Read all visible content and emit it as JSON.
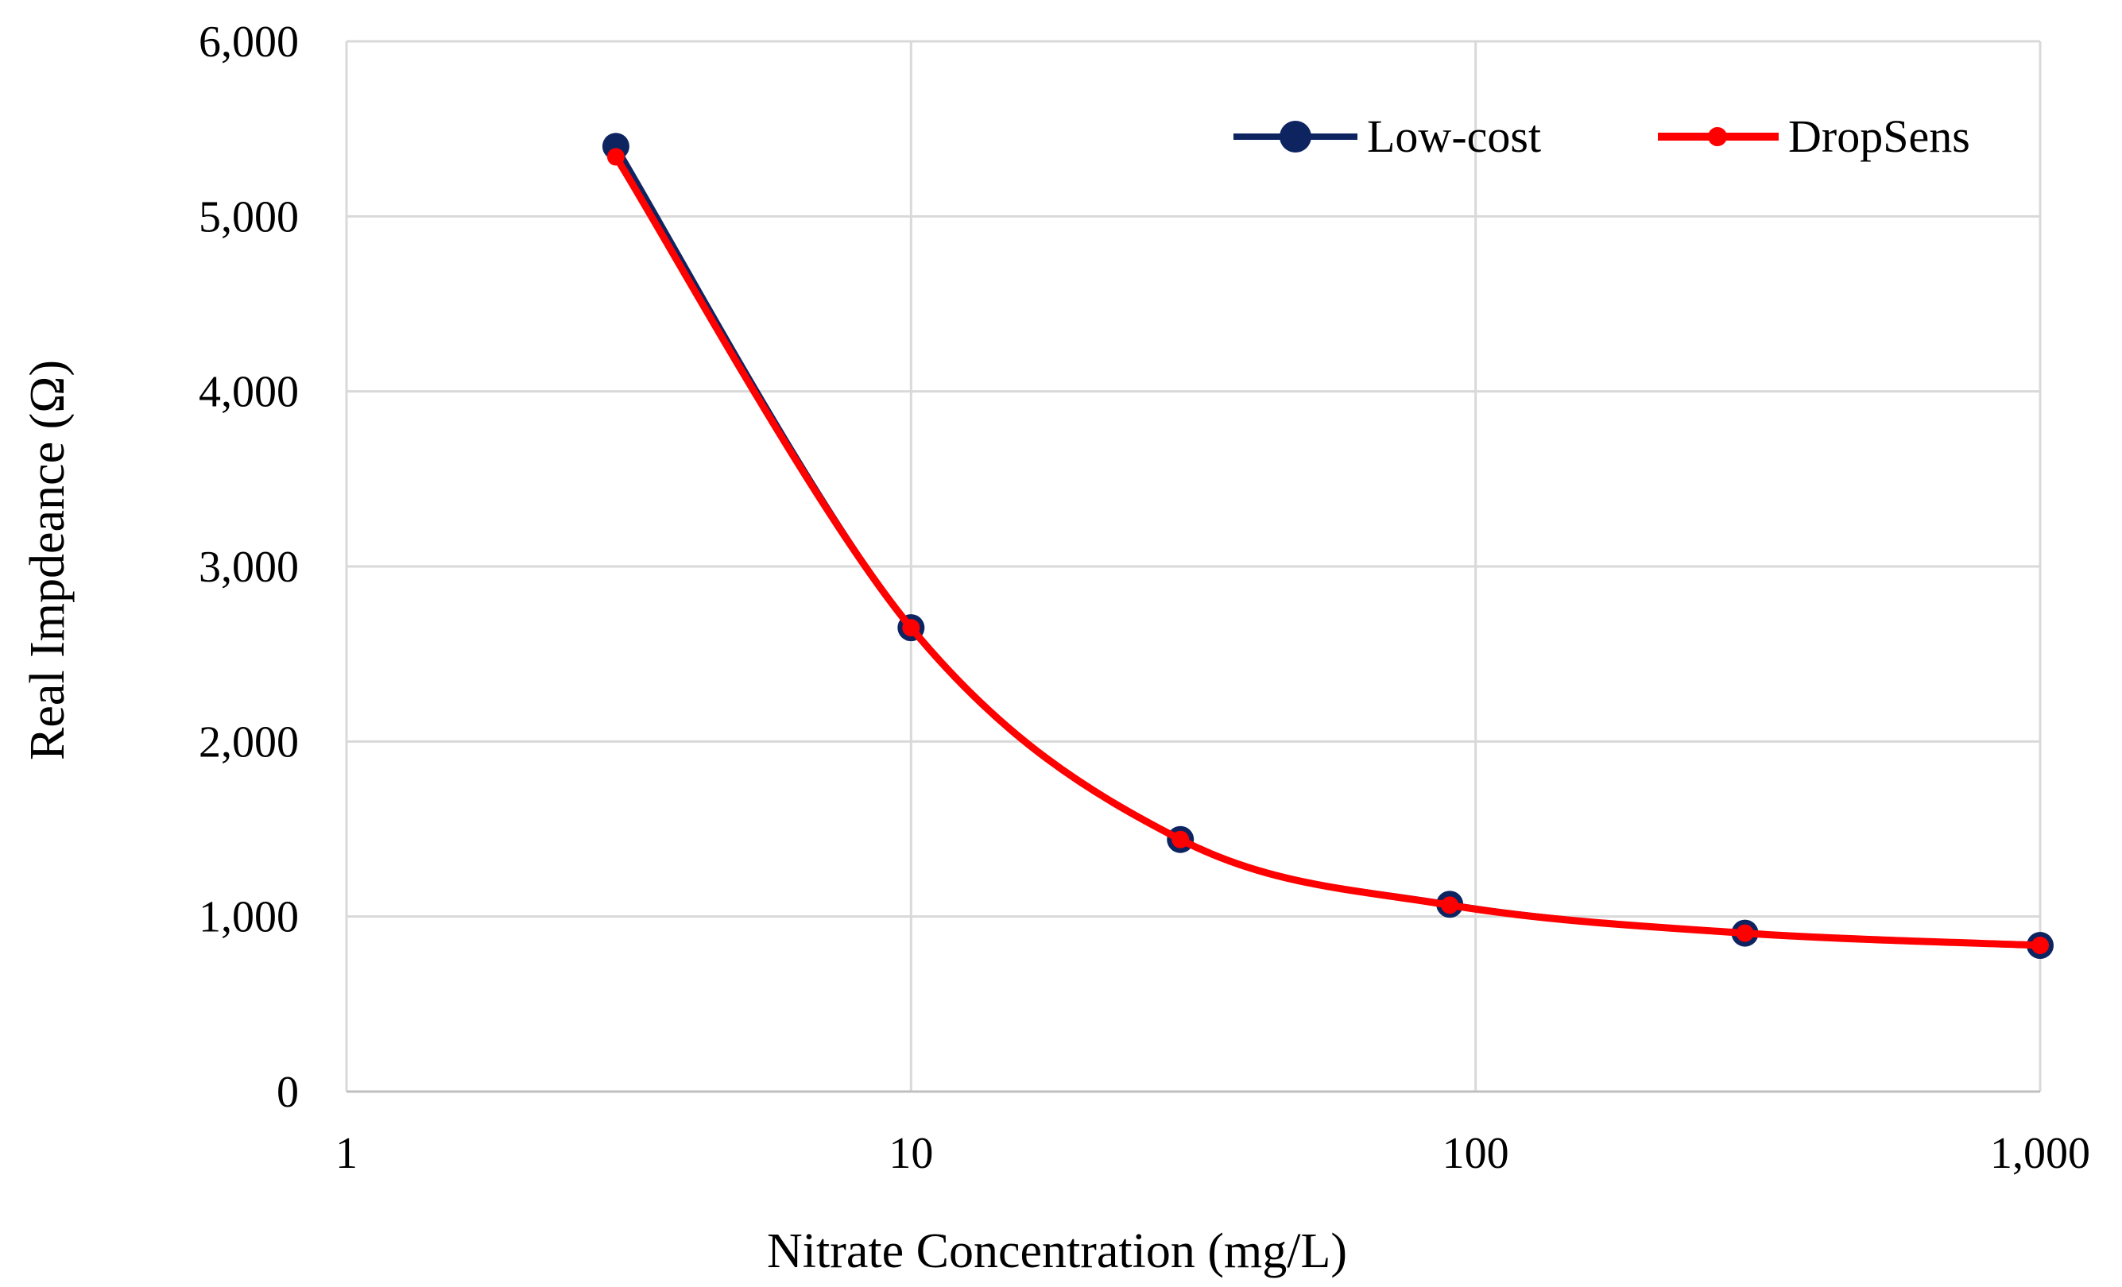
{
  "chart_data": {
    "type": "line",
    "title": "",
    "xlabel": "Nitrate Concentration (mg/L)",
    "ylabel": "Real Impdeance (Ω)",
    "x_scale": "log",
    "xlim": [
      1,
      1000
    ],
    "ylim": [
      0,
      6000
    ],
    "x_ticks": [
      1,
      10,
      100,
      1000
    ],
    "x_tick_labels": [
      "1",
      "10",
      "100",
      "1,000"
    ],
    "y_ticks": [
      0,
      1000,
      2000,
      3000,
      4000,
      5000,
      6000
    ],
    "y_tick_labels": [
      "0",
      "1,000",
      "2,000",
      "3,000",
      "4,000",
      "5,000",
      "6,000"
    ],
    "grid": true,
    "legend_position": "top-right",
    "smooth": true,
    "series": [
      {
        "name": "Low-cost",
        "color": "#0d2461",
        "x": [
          3,
          10,
          30,
          90,
          300,
          1000
        ],
        "y": [
          5400,
          2650,
          1440,
          1070,
          905,
          835
        ]
      },
      {
        "name": "DropSens",
        "color": "#ff0000",
        "x": [
          3,
          10,
          30,
          90,
          300,
          1000
        ],
        "y": [
          5340,
          2650,
          1440,
          1065,
          905,
          835
        ]
      }
    ]
  }
}
